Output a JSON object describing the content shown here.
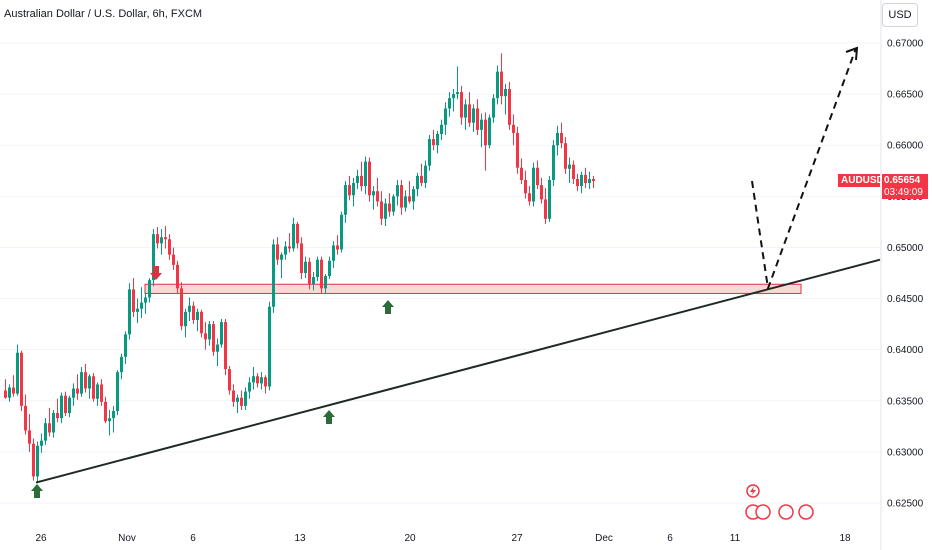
{
  "header": {
    "title": "Australian Dollar / U.S. Dollar, 6h, FXCM",
    "currency_button": "USD"
  },
  "price_badge": {
    "symbol": "AUDUSD",
    "price": "0.65654",
    "countdown": "03:49:09"
  },
  "colors": {
    "up": "#089981",
    "down": "#f23645",
    "zone_fill": "#f8c9cd",
    "zone_border": "#e0313e",
    "arrow": "#2e6b3a",
    "line": "#1e2a22"
  },
  "chart_data": {
    "type": "candlestick",
    "title": "Australian Dollar / U.S. Dollar, 6h, FXCM",
    "ylim": [
      0.6235,
      0.6715
    ],
    "y_ticks": [
      "0.67000",
      "0.66500",
      "0.66000",
      "0.65500",
      "0.65000",
      "0.64500",
      "0.64000",
      "0.63500",
      "0.63000",
      "0.62500"
    ],
    "x_ticks": [
      "26",
      "Nov",
      "6",
      "13",
      "20",
      "27",
      "Dec",
      "6",
      "11",
      "18"
    ],
    "candles": [
      [
        0.636,
        0.6371,
        0.6352,
        0.6353
      ],
      [
        0.6353,
        0.6366,
        0.6349,
        0.6363
      ],
      [
        0.6363,
        0.6375,
        0.6354,
        0.6357
      ],
      [
        0.6357,
        0.6405,
        0.6355,
        0.6397
      ],
      [
        0.6397,
        0.6399,
        0.634,
        0.6345
      ],
      [
        0.6345,
        0.6356,
        0.6317,
        0.6321
      ],
      [
        0.6321,
        0.6337,
        0.63,
        0.6308
      ],
      [
        0.6308,
        0.6313,
        0.6272,
        0.6276
      ],
      [
        0.6276,
        0.631,
        0.6271,
        0.6306
      ],
      [
        0.6306,
        0.6318,
        0.6299,
        0.6311
      ],
      [
        0.6311,
        0.6333,
        0.6307,
        0.6328
      ],
      [
        0.6328,
        0.6343,
        0.6315,
        0.6319
      ],
      [
        0.6319,
        0.6341,
        0.6314,
        0.6338
      ],
      [
        0.6338,
        0.6352,
        0.6329,
        0.6333
      ],
      [
        0.6333,
        0.6358,
        0.6328,
        0.6355
      ],
      [
        0.6355,
        0.6359,
        0.6335,
        0.6338
      ],
      [
        0.6338,
        0.6355,
        0.6334,
        0.6353
      ],
      [
        0.6353,
        0.6367,
        0.6345,
        0.6362
      ],
      [
        0.6362,
        0.6376,
        0.6351,
        0.6357
      ],
      [
        0.6357,
        0.6383,
        0.6354,
        0.6378
      ],
      [
        0.6378,
        0.6386,
        0.6358,
        0.6362
      ],
      [
        0.6362,
        0.6376,
        0.6352,
        0.6374
      ],
      [
        0.6374,
        0.6377,
        0.6349,
        0.6352
      ],
      [
        0.6352,
        0.6368,
        0.6345,
        0.6366
      ],
      [
        0.6366,
        0.6371,
        0.6345,
        0.6349
      ],
      [
        0.6349,
        0.6354,
        0.6328,
        0.633
      ],
      [
        0.633,
        0.6341,
        0.6316,
        0.6333
      ],
      [
        0.6333,
        0.6345,
        0.6319,
        0.634
      ],
      [
        0.634,
        0.638,
        0.6336,
        0.6378
      ],
      [
        0.6378,
        0.6396,
        0.6371,
        0.6393
      ],
      [
        0.6393,
        0.6418,
        0.6386,
        0.6415
      ],
      [
        0.6415,
        0.6465,
        0.641,
        0.6459
      ],
      [
        0.6459,
        0.647,
        0.6432,
        0.6437
      ],
      [
        0.6437,
        0.645,
        0.6426,
        0.644
      ],
      [
        0.644,
        0.6461,
        0.6431,
        0.6446
      ],
      [
        0.6446,
        0.6456,
        0.6435,
        0.6451
      ],
      [
        0.6451,
        0.647,
        0.6446,
        0.6468
      ],
      [
        0.6468,
        0.6518,
        0.6462,
        0.6513
      ],
      [
        0.6513,
        0.652,
        0.6499,
        0.6504
      ],
      [
        0.6504,
        0.6518,
        0.6493,
        0.651
      ],
      [
        0.651,
        0.6521,
        0.6499,
        0.6508
      ],
      [
        0.6508,
        0.6513,
        0.6488,
        0.6493
      ],
      [
        0.6493,
        0.65,
        0.6478,
        0.6483
      ],
      [
        0.6483,
        0.6487,
        0.6455,
        0.646
      ],
      [
        0.646,
        0.6466,
        0.6419,
        0.6423
      ],
      [
        0.6423,
        0.644,
        0.6412,
        0.6437
      ],
      [
        0.6437,
        0.6451,
        0.6428,
        0.6443
      ],
      [
        0.6443,
        0.6447,
        0.6425,
        0.6429
      ],
      [
        0.6429,
        0.644,
        0.6418,
        0.6437
      ],
      [
        0.6437,
        0.6439,
        0.6412,
        0.6416
      ],
      [
        0.6416,
        0.6427,
        0.64,
        0.641
      ],
      [
        0.641,
        0.6428,
        0.6404,
        0.6425
      ],
      [
        0.6425,
        0.6428,
        0.6394,
        0.6398
      ],
      [
        0.6398,
        0.6411,
        0.6384,
        0.6405
      ],
      [
        0.6405,
        0.643,
        0.6402,
        0.6427
      ],
      [
        0.6427,
        0.643,
        0.6375,
        0.6381
      ],
      [
        0.6381,
        0.6384,
        0.6356,
        0.636
      ],
      [
        0.636,
        0.6366,
        0.6344,
        0.6349
      ],
      [
        0.6349,
        0.6356,
        0.6338,
        0.6353
      ],
      [
        0.6353,
        0.636,
        0.6341,
        0.6345
      ],
      [
        0.6345,
        0.6363,
        0.6341,
        0.6359
      ],
      [
        0.6359,
        0.6373,
        0.6352,
        0.6368
      ],
      [
        0.6368,
        0.6383,
        0.6361,
        0.6374
      ],
      [
        0.6374,
        0.6377,
        0.6363,
        0.6367
      ],
      [
        0.6367,
        0.6378,
        0.6361,
        0.6373
      ],
      [
        0.6373,
        0.6375,
        0.6357,
        0.6364
      ],
      [
        0.6364,
        0.6447,
        0.636,
        0.6442
      ],
      [
        0.6442,
        0.6508,
        0.6436,
        0.6503
      ],
      [
        0.6503,
        0.651,
        0.6483,
        0.6488
      ],
      [
        0.6488,
        0.6495,
        0.647,
        0.6493
      ],
      [
        0.6493,
        0.6506,
        0.6488,
        0.6501
      ],
      [
        0.6501,
        0.6514,
        0.6495,
        0.6499
      ],
      [
        0.6499,
        0.6529,
        0.6496,
        0.6523
      ],
      [
        0.6523,
        0.6525,
        0.6499,
        0.6504
      ],
      [
        0.6504,
        0.651,
        0.6469,
        0.6475
      ],
      [
        0.6475,
        0.6491,
        0.647,
        0.6486
      ],
      [
        0.6486,
        0.649,
        0.6459,
        0.6464
      ],
      [
        0.6464,
        0.6476,
        0.6458,
        0.6471
      ],
      [
        0.6471,
        0.6491,
        0.6467,
        0.6488
      ],
      [
        0.6488,
        0.6491,
        0.6455,
        0.646
      ],
      [
        0.646,
        0.6474,
        0.6455,
        0.6472
      ],
      [
        0.6472,
        0.6491,
        0.6469,
        0.6487
      ],
      [
        0.6487,
        0.6506,
        0.648,
        0.6502
      ],
      [
        0.6502,
        0.6512,
        0.6493,
        0.6498
      ],
      [
        0.6498,
        0.6535,
        0.6495,
        0.6532
      ],
      [
        0.6532,
        0.6565,
        0.6524,
        0.6561
      ],
      [
        0.6561,
        0.657,
        0.6546,
        0.6551
      ],
      [
        0.6551,
        0.6568,
        0.654,
        0.6563
      ],
      [
        0.6563,
        0.6576,
        0.6557,
        0.657
      ],
      [
        0.657,
        0.6584,
        0.6555,
        0.656
      ],
      [
        0.656,
        0.6589,
        0.6552,
        0.6584
      ],
      [
        0.6584,
        0.6588,
        0.6545,
        0.6551
      ],
      [
        0.6551,
        0.656,
        0.6537,
        0.6555
      ],
      [
        0.6555,
        0.6568,
        0.654,
        0.6545
      ],
      [
        0.6545,
        0.6555,
        0.6522,
        0.6528
      ],
      [
        0.6528,
        0.6548,
        0.6521,
        0.6543
      ],
      [
        0.6543,
        0.6553,
        0.653,
        0.6535
      ],
      [
        0.6535,
        0.6552,
        0.6531,
        0.655
      ],
      [
        0.655,
        0.6566,
        0.6541,
        0.6561
      ],
      [
        0.6561,
        0.6566,
        0.6532,
        0.6539
      ],
      [
        0.6539,
        0.6556,
        0.6535,
        0.655
      ],
      [
        0.655,
        0.6565,
        0.6543,
        0.6545
      ],
      [
        0.6545,
        0.656,
        0.6537,
        0.6557
      ],
      [
        0.6557,
        0.6573,
        0.655,
        0.657
      ],
      [
        0.657,
        0.6582,
        0.656,
        0.6563
      ],
      [
        0.6563,
        0.6585,
        0.6558,
        0.658
      ],
      [
        0.658,
        0.661,
        0.6575,
        0.6606
      ],
      [
        0.6606,
        0.6615,
        0.6595,
        0.66
      ],
      [
        0.66,
        0.6614,
        0.6592,
        0.6611
      ],
      [
        0.6611,
        0.6625,
        0.6605,
        0.662
      ],
      [
        0.662,
        0.6642,
        0.661,
        0.6636
      ],
      [
        0.6636,
        0.6652,
        0.6628,
        0.6646
      ],
      [
        0.6646,
        0.6655,
        0.6633,
        0.665
      ],
      [
        0.665,
        0.6677,
        0.6645,
        0.6652
      ],
      [
        0.6652,
        0.6658,
        0.662,
        0.6627
      ],
      [
        0.6627,
        0.6645,
        0.6615,
        0.664
      ],
      [
        0.664,
        0.6652,
        0.6618,
        0.6622
      ],
      [
        0.6622,
        0.664,
        0.6613,
        0.6636
      ],
      [
        0.6636,
        0.6645,
        0.661,
        0.6615
      ],
      [
        0.6615,
        0.6631,
        0.6598,
        0.6625
      ],
      [
        0.6625,
        0.6632,
        0.6575,
        0.66
      ],
      [
        0.66,
        0.663,
        0.6597,
        0.6627
      ],
      [
        0.6627,
        0.665,
        0.6622,
        0.6646
      ],
      [
        0.6646,
        0.6678,
        0.664,
        0.6672
      ],
      [
        0.6672,
        0.669,
        0.664,
        0.6648
      ],
      [
        0.6648,
        0.666,
        0.663,
        0.6655
      ],
      [
        0.6655,
        0.6662,
        0.6615,
        0.662
      ],
      [
        0.662,
        0.663,
        0.66,
        0.6612
      ],
      [
        0.6612,
        0.6618,
        0.6572,
        0.6578
      ],
      [
        0.6578,
        0.6587,
        0.6562,
        0.6566
      ],
      [
        0.6566,
        0.6575,
        0.6548,
        0.6553
      ],
      [
        0.6553,
        0.656,
        0.6541,
        0.6545
      ],
      [
        0.6545,
        0.6583,
        0.654,
        0.6578
      ],
      [
        0.6578,
        0.6585,
        0.6557,
        0.6561
      ],
      [
        0.6561,
        0.6568,
        0.6543,
        0.6547
      ],
      [
        0.6547,
        0.6558,
        0.6523,
        0.6528
      ],
      [
        0.6528,
        0.657,
        0.6525,
        0.6566
      ],
      [
        0.6566,
        0.6605,
        0.656,
        0.66
      ],
      [
        0.66,
        0.6619,
        0.659,
        0.6612
      ],
      [
        0.6612,
        0.6622,
        0.6597,
        0.6602
      ],
      [
        0.6602,
        0.6608,
        0.6572,
        0.6577
      ],
      [
        0.6577,
        0.6588,
        0.6563,
        0.6581
      ],
      [
        0.6581,
        0.6585,
        0.6562,
        0.6567
      ],
      [
        0.6567,
        0.6572,
        0.6555,
        0.656
      ],
      [
        0.656,
        0.6574,
        0.6553,
        0.6571
      ],
      [
        0.6571,
        0.6578,
        0.6558,
        0.6563
      ],
      [
        0.6563,
        0.6574,
        0.6557,
        0.6567
      ],
      [
        0.6567,
        0.657,
        0.6558,
        0.6565
      ]
    ],
    "annotations": {
      "support_zone": [
        0.6455,
        0.6464
      ],
      "trendline": [
        [
          0,
          0.627
        ],
        [
          190,
          0.6485
        ]
      ],
      "projection": [
        [
          145,
          0.6565
        ],
        [
          148,
          0.646
        ],
        [
          159,
          0.6695
        ]
      ],
      "arrows": [
        {
          "index": 30,
          "direction": "down"
        },
        {
          "index": 7,
          "direction": "up"
        },
        {
          "index": 65,
          "direction": "up"
        },
        {
          "index": 78,
          "direction": "up"
        }
      ]
    }
  }
}
